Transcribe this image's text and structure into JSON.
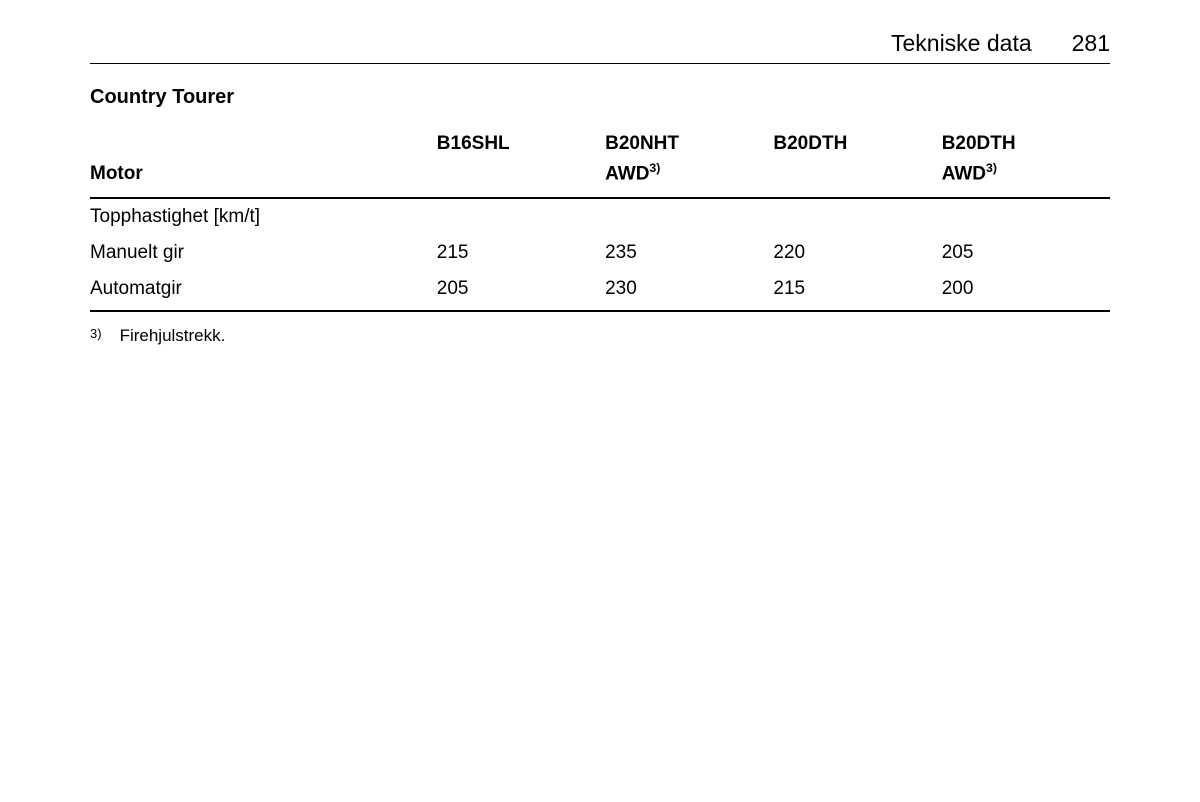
{
  "header": {
    "title": "Tekniske data",
    "page_number": "281"
  },
  "subtitle": "Country Tourer",
  "table": {
    "row_header_label": "Motor",
    "columns": [
      {
        "name": "B16SHL",
        "awd": null
      },
      {
        "name": "B20NHT",
        "awd": "AWD",
        "sup": "3)"
      },
      {
        "name": "B20DTH",
        "awd": null
      },
      {
        "name": "B20DTH",
        "awd": "AWD",
        "sup": "3)"
      }
    ],
    "section_label": "Topphastighet [km/t]",
    "rows": [
      {
        "label": "Manuelt gir",
        "values": [
          "215",
          "235",
          "220",
          "205"
        ]
      },
      {
        "label": "Automatgir",
        "values": [
          "205",
          "230",
          "215",
          "200"
        ]
      }
    ]
  },
  "footnote": {
    "marker": "3)",
    "text": "Firehjulstrekk."
  }
}
